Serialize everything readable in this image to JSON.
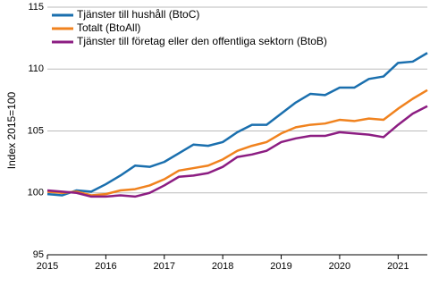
{
  "chart_data": {
    "type": "line",
    "y_label": "Index 2015=100",
    "x": [
      2015,
      2015.25,
      2015.5,
      2015.75,
      2016,
      2016.25,
      2016.5,
      2016.75,
      2017,
      2017.25,
      2017.5,
      2017.75,
      2018,
      2018.25,
      2018.5,
      2018.75,
      2019,
      2019.25,
      2019.5,
      2019.75,
      2020,
      2020.25,
      2020.5,
      2020.75,
      2021,
      2021.25,
      2021.5
    ],
    "series": [
      {
        "name": "Tjänster till hushåll (BtoC)",
        "color": "#1a6fae",
        "values": [
          99.9,
          99.8,
          100.2,
          100.1,
          100.7,
          101.4,
          102.2,
          102.1,
          102.5,
          103.2,
          103.9,
          103.8,
          104.1,
          104.9,
          105.5,
          105.5,
          106.4,
          107.3,
          108.0,
          107.9,
          108.5,
          108.5,
          109.2,
          109.4,
          110.5,
          110.6,
          111.3
        ]
      },
      {
        "name": "Totalt (BtoAll)",
        "color": "#f0821e",
        "values": [
          100.1,
          100.0,
          100.1,
          99.8,
          99.9,
          100.2,
          100.3,
          100.6,
          101.1,
          101.8,
          102.0,
          102.2,
          102.7,
          103.4,
          103.8,
          104.1,
          104.8,
          105.3,
          105.5,
          105.6,
          105.9,
          105.8,
          106.0,
          105.9,
          106.8,
          107.6,
          108.3
        ]
      },
      {
        "name": "Tjänster till företag eller den offentliga sektorn (BtoB)",
        "color": "#8c1d82",
        "values": [
          100.2,
          100.1,
          100.0,
          99.7,
          99.7,
          99.8,
          99.7,
          100.0,
          100.6,
          101.3,
          101.4,
          101.6,
          102.1,
          102.9,
          103.1,
          103.4,
          104.1,
          104.4,
          104.6,
          104.6,
          104.9,
          104.8,
          104.7,
          104.5,
          105.5,
          106.4,
          107.0
        ]
      }
    ],
    "xlim": [
      2015,
      2021.5
    ],
    "xticks": [
      2015,
      2016,
      2017,
      2018,
      2019,
      2020,
      2021
    ],
    "ylim": [
      95,
      115
    ],
    "yticks": [
      95,
      100,
      105,
      110,
      115
    ],
    "grid": true,
    "legend": "upper left"
  }
}
